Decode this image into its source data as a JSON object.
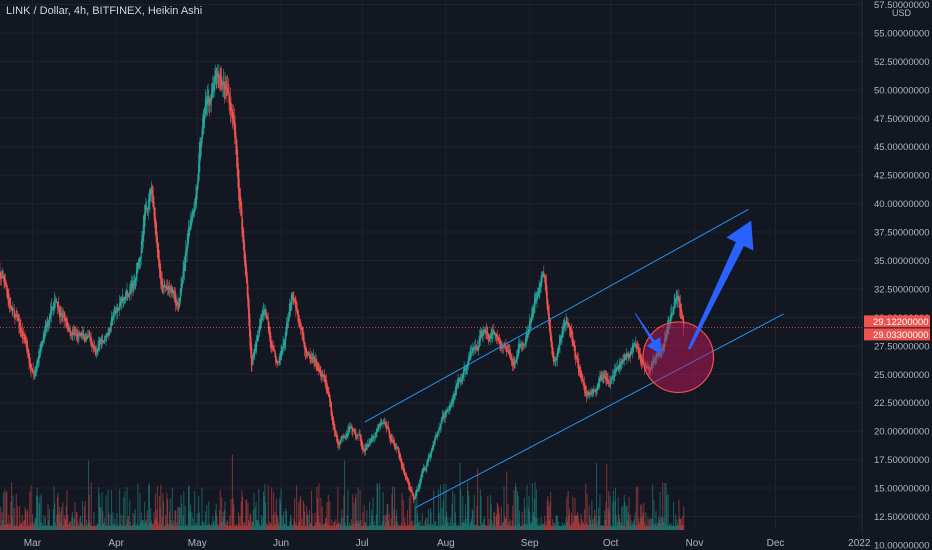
{
  "header": {
    "title": "LINK / Dollar, 4h, BITFINEX, Heikin Ashi"
  },
  "colors": {
    "background": "#131722",
    "up": "#26a69a",
    "down": "#ef5350",
    "grid": "#1e222d",
    "text": "#b2b5be",
    "channel": "#2196f3",
    "arrow": "#2962ff",
    "circle_fill": "#c2185b",
    "price_line": "#ef5350"
  },
  "chart_data": {
    "type": "candlestick",
    "title": "LINK / Dollar, 4h, BITFINEX, Heikin Ashi",
    "exchange": "BITFINEX",
    "timeframe": "4h",
    "style": "Heikin Ashi",
    "unit": "USD",
    "y_ticks": [
      "10.00000000",
      "12.50000000",
      "15.00000000",
      "17.50000000",
      "20.00000000",
      "22.50000000",
      "25.00000000",
      "27.50000000",
      "30.00000000",
      "32.50000000",
      "35.00000000",
      "37.50000000",
      "40.00000000",
      "42.50000000",
      "45.00000000",
      "47.50000000",
      "50.00000000",
      "52.50000000",
      "55.00000000",
      "57.50000000"
    ],
    "y_tick_values": [
      10,
      12.5,
      15,
      17.5,
      20,
      22.5,
      25,
      27.5,
      30,
      32.5,
      35,
      37.5,
      40,
      42.5,
      45,
      47.5,
      50,
      52.5,
      55,
      57.5
    ],
    "ylim": [
      9.55,
      57.9
    ],
    "x_ticks": [
      "Mar",
      "Apr",
      "May",
      "Jun",
      "Jul",
      "Aug",
      "Sep",
      "Oct",
      "Nov",
      "Dec",
      "2022"
    ],
    "x_tick_dates": [
      "2021-03-01",
      "2021-04-01",
      "2021-05-01",
      "2021-06-01",
      "2021-07-01",
      "2021-08-01",
      "2021-09-01",
      "2021-10-01",
      "2021-11-01",
      "2021-12-01",
      "2022-01-01"
    ],
    "xlim": [
      "2021-02-17",
      "2022-01-02"
    ],
    "price_labels": [
      {
        "text": "29.12200000",
        "value": 29.122
      },
      {
        "text": "29.03300000",
        "value": 29.033
      }
    ],
    "trend": [
      [
        "2021-02-17",
        34.0
      ],
      [
        "2021-02-23",
        29.5
      ],
      [
        "2021-03-02",
        25.5
      ],
      [
        "2021-03-10",
        31.0
      ],
      [
        "2021-03-18",
        28.0
      ],
      [
        "2021-03-25",
        27.0
      ],
      [
        "2021-04-01",
        30.5
      ],
      [
        "2021-04-08",
        32.5
      ],
      [
        "2021-04-14",
        42.0
      ],
      [
        "2021-04-18",
        33.0
      ],
      [
        "2021-04-24",
        31.0
      ],
      [
        "2021-04-28",
        37.0
      ],
      [
        "2021-05-04",
        48.0
      ],
      [
        "2021-05-10",
        51.0
      ],
      [
        "2021-05-14",
        48.0
      ],
      [
        "2021-05-19",
        34.0
      ],
      [
        "2021-05-21",
        26.0
      ],
      [
        "2021-05-26",
        31.0
      ],
      [
        "2021-05-31",
        25.5
      ],
      [
        "2021-06-05",
        31.0
      ],
      [
        "2021-06-12",
        26.0
      ],
      [
        "2021-06-17",
        24.0
      ],
      [
        "2021-06-22",
        19.0
      ],
      [
        "2021-06-26",
        21.0
      ],
      [
        "2021-07-02",
        18.5
      ],
      [
        "2021-07-09",
        20.5
      ],
      [
        "2021-07-14",
        18.5
      ],
      [
        "2021-07-20",
        14.0
      ],
      [
        "2021-07-24",
        17.0
      ],
      [
        "2021-07-30",
        20.5
      ],
      [
        "2021-08-07",
        24.5
      ],
      [
        "2021-08-14",
        28.5
      ],
      [
        "2021-08-20",
        27.5
      ],
      [
        "2021-08-26",
        26.0
      ],
      [
        "2021-09-01",
        29.0
      ],
      [
        "2021-09-06",
        33.5
      ],
      [
        "2021-09-10",
        26.5
      ],
      [
        "2021-09-15",
        29.0
      ],
      [
        "2021-09-22",
        23.0
      ],
      [
        "2021-09-28",
        24.5
      ],
      [
        "2021-10-03",
        26.5
      ],
      [
        "2021-10-10",
        27.5
      ],
      [
        "2021-10-14",
        25.5
      ],
      [
        "2021-10-20",
        27.0
      ],
      [
        "2021-10-23",
        30.0
      ],
      [
        "2021-10-26",
        31.8
      ],
      [
        "2021-10-28",
        29.1
      ]
    ],
    "channel": {
      "upper": [
        [
          "2021-07-02",
          20.8
        ],
        [
          "2021-11-21",
          39.5
        ]
      ],
      "lower": [
        [
          "2021-07-21",
          13.3
        ],
        [
          "2021-12-04",
          30.3
        ]
      ]
    },
    "annotations": [
      {
        "type": "arrow",
        "from": [
          "2021-10-10",
          30.4
        ],
        "to": [
          "2021-10-20",
          26.7
        ]
      },
      {
        "type": "arrow",
        "from": [
          "2021-10-30",
          27.2
        ],
        "to": [
          "2021-11-22",
          38.5
        ]
      },
      {
        "type": "circle",
        "center": [
          "2021-10-26",
          26.5
        ],
        "radius_value": 3.1
      }
    ],
    "volume": true,
    "grid": true
  }
}
